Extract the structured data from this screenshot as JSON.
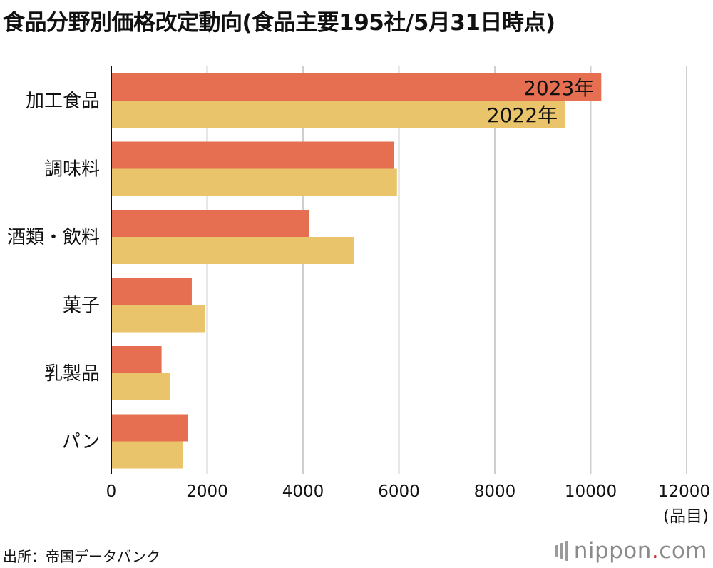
{
  "title": "食品分野別価格改定動向(食品主要195社/5月31日時点)",
  "unit_label": "(品目)",
  "source": "出所：帝国データバンク",
  "logo": {
    "pre": "nippon",
    "dot": ".",
    "post": "com"
  },
  "colors": {
    "series_2023": "#E76F51",
    "series_2022": "#E9C46A",
    "grid": "#cfcfcf",
    "axis": "#111111"
  },
  "chart_data": {
    "type": "bar",
    "orientation": "horizontal",
    "categories": [
      "加工食品",
      "調味料",
      "酒類・飲料",
      "菓子",
      "乳製品",
      "パン"
    ],
    "series": [
      {
        "name": "2023年",
        "values": [
          10220,
          5900,
          4120,
          1680,
          1050,
          1600
        ]
      },
      {
        "name": "2022年",
        "values": [
          9460,
          5960,
          5060,
          1960,
          1230,
          1500
        ]
      }
    ],
    "xlim": [
      0,
      12000
    ],
    "xticks": [
      0,
      2000,
      4000,
      6000,
      8000,
      10000,
      12000
    ],
    "grid": true,
    "legend": "inline labels on first category bars"
  }
}
